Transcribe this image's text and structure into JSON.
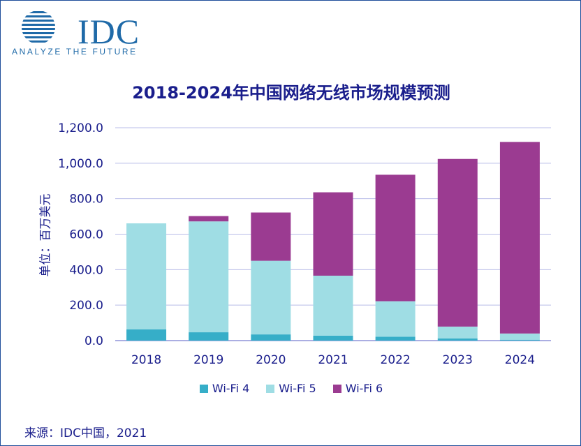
{
  "logo": {
    "text": "IDC",
    "tagline": "ANALYZE THE FUTURE"
  },
  "source": "来源：IDC中国，2021",
  "colors": {
    "wifi4": "#36aec8",
    "wifi5": "#9fdde4",
    "wifi6": "#9b3b91",
    "text": "#1a1e8c",
    "grid": "#b8bce8"
  },
  "chart_data": {
    "type": "bar",
    "stacked": true,
    "title": "2018-2024年中国网络无线市场规模预测",
    "ylabel": "单位：百万美元",
    "xlabel": "",
    "ylim": [
      0,
      1200
    ],
    "yticks": [
      "0.0",
      "200.0",
      "400.0",
      "600.0",
      "800.0",
      "1,000.0",
      "1,200.0"
    ],
    "ytick_values": [
      0,
      200,
      400,
      600,
      800,
      1000,
      1200
    ],
    "categories": [
      "2018",
      "2019",
      "2020",
      "2021",
      "2022",
      "2023",
      "2024"
    ],
    "series": [
      {
        "name": "Wi-Fi 4",
        "values": [
          63,
          47,
          35,
          28,
          22,
          12,
          5
        ]
      },
      {
        "name": "Wi-Fi 5",
        "values": [
          598,
          625,
          415,
          338,
          200,
          67,
          35
        ]
      },
      {
        "name": "Wi-Fi 6",
        "values": [
          0,
          30,
          272,
          470,
          713,
          945,
          1080
        ]
      }
    ],
    "grid": true,
    "legend": "bottom"
  }
}
